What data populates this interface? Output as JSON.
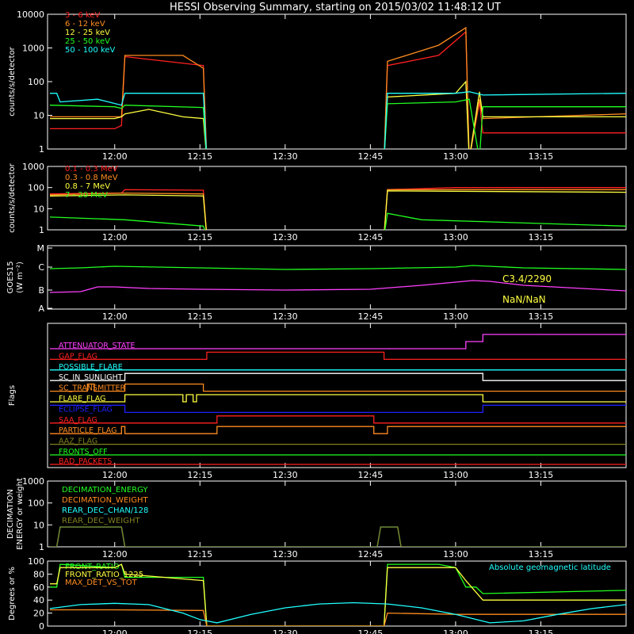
{
  "title": "HESSI Observing Summary, starting on 2015/03/02 11:48:12 UT",
  "time_ticks": [
    "12:00",
    "12:15",
    "12:30",
    "12:45",
    "13:00",
    "13:15"
  ],
  "chart_data": [
    {
      "id": "p1",
      "type": "line",
      "ylog": true,
      "ylim": [
        1,
        10000
      ],
      "ylabel": "counts/s/detector",
      "yticks": [
        "1",
        "10",
        "100",
        "1000",
        "10000"
      ],
      "series": [
        {
          "name": "3 - 6 keV",
          "color": "#ff2020",
          "x": [
            11.81,
            12.0,
            12.02,
            12.03,
            12.26,
            12.27,
            12.79,
            12.8,
            12.95,
            13.03,
            13.04,
            13.07,
            13.08,
            13.5
          ],
          "y": [
            4,
            4,
            5,
            550,
            300,
            0,
            0,
            300,
            600,
            3000,
            0,
            25,
            3,
            3
          ]
        },
        {
          "name": "6 - 12 keV",
          "color": "#ff8c20",
          "x": [
            11.81,
            12.0,
            12.02,
            12.03,
            12.2,
            12.26,
            12.27,
            12.79,
            12.8,
            12.95,
            13.03,
            13.04,
            13.07,
            13.08,
            13.5
          ],
          "y": [
            9,
            9,
            9,
            600,
            600,
            250,
            0,
            0,
            400,
            1200,
            4000,
            0,
            30,
            8,
            11
          ]
        },
        {
          "name": "12 - 25 keV",
          "color": "#ffff40",
          "x": [
            11.81,
            12.0,
            12.02,
            12.03,
            12.1,
            12.2,
            12.26,
            12.27,
            12.79,
            12.8,
            13.0,
            13.03,
            13.04,
            13.07,
            13.08,
            13.5
          ],
          "y": [
            8,
            8,
            9,
            11,
            15,
            9,
            8,
            0,
            0,
            35,
            45,
            100,
            0,
            50,
            9,
            9
          ]
        },
        {
          "name": "25 - 50 keV",
          "color": "#20ff20",
          "x": [
            11.81,
            12.0,
            12.02,
            12.03,
            12.26,
            12.27,
            12.79,
            12.8,
            13.0,
            13.04,
            13.07,
            13.08,
            13.5
          ],
          "y": [
            20,
            18,
            16,
            20,
            17,
            0,
            0,
            22,
            25,
            30,
            0,
            18,
            18
          ]
        },
        {
          "name": "50 - 100 keV",
          "color": "#20ffff",
          "x": [
            11.81,
            11.83,
            11.84,
            11.95,
            12.02,
            12.03,
            12.26,
            12.27,
            12.79,
            12.8,
            13.0,
            13.04,
            13.08,
            13.5
          ],
          "y": [
            45,
            45,
            25,
            30,
            20,
            45,
            45,
            0,
            0,
            45,
            45,
            50,
            40,
            45
          ]
        }
      ]
    },
    {
      "id": "p2",
      "type": "line",
      "ylog": true,
      "ylim": [
        1,
        1000
      ],
      "ylabel": "counts/s/detector",
      "yticks": [
        "1",
        "10",
        "100",
        "1000"
      ],
      "series": [
        {
          "name": "0.1 - 0.3 MeV",
          "color": "#ff2020",
          "x": [
            11.81,
            12.0,
            12.02,
            12.03,
            12.26,
            12.27,
            12.79,
            12.8,
            13.0,
            13.5
          ],
          "y": [
            50,
            55,
            55,
            80,
            75,
            0,
            0,
            80,
            100,
            100
          ]
        },
        {
          "name": "0.3 - 0.8 MeV",
          "color": "#ff8c20",
          "x": [
            11.81,
            12.03,
            12.26,
            12.27,
            12.79,
            12.8,
            13.5
          ],
          "y": [
            45,
            55,
            50,
            0,
            0,
            80,
            80
          ]
        },
        {
          "name": "0.8 - 7 MeV",
          "color": "#ffff40",
          "x": [
            11.81,
            12.03,
            12.26,
            12.27,
            12.79,
            12.8,
            13.5
          ],
          "y": [
            40,
            45,
            40,
            0,
            0,
            70,
            60
          ]
        },
        {
          "name": "7 - 20 MeV",
          "color": "#20ff20",
          "x": [
            11.81,
            12.03,
            12.26,
            12.27,
            12.79,
            12.8,
            12.9,
            13.5
          ],
          "y": [
            4,
            3,
            1.5,
            0,
            0,
            6,
            3,
            1.5
          ]
        }
      ]
    },
    {
      "id": "p3",
      "type": "line",
      "ylim": [
        0,
        4
      ],
      "ylabel": "GOES15",
      "ylabel2": "(W m⁻²)",
      "yticks": [
        "A",
        "B",
        "C",
        "M"
      ],
      "annotations": [
        {
          "text": "C3.4/2290",
          "color": "#ffff40"
        },
        {
          "text": "NaN/NaN",
          "color": "#ffff40"
        }
      ],
      "series": [
        {
          "name": "GOES long",
          "color": "#20ff20",
          "x": [
            11.81,
            11.9,
            12.0,
            12.25,
            12.5,
            12.75,
            13.0,
            13.05,
            13.2,
            13.5
          ],
          "y": [
            2.55,
            2.6,
            2.7,
            2.6,
            2.5,
            2.55,
            2.65,
            2.75,
            2.6,
            2.5
          ]
        },
        {
          "name": "GOES short",
          "color": "#ff40ff",
          "x": [
            11.81,
            11.9,
            11.95,
            12.0,
            12.1,
            12.25,
            12.5,
            12.75,
            12.9,
            13.0,
            13.05,
            13.1,
            13.2,
            13.5
          ],
          "y": [
            1.05,
            1.1,
            1.4,
            1.4,
            1.3,
            1.25,
            1.2,
            1.25,
            1.5,
            1.7,
            1.8,
            1.75,
            1.5,
            1.15
          ]
        }
      ]
    },
    {
      "id": "p4",
      "type": "flags",
      "ylabel": "Flags",
      "flags": [
        {
          "name": "ATTENUATOR_STATE",
          "color": "#ff40ff",
          "segments": [
            [
              11.81,
              13.03,
              0
            ],
            [
              13.03,
              13.08,
              1
            ],
            [
              13.08,
              13.5,
              2
            ]
          ]
        },
        {
          "name": "GAP_FLAG",
          "color": "#ff2020",
          "segments": [
            [
              11.81,
              12.27,
              0
            ],
            [
              12.27,
              12.79,
              1
            ],
            [
              12.79,
              13.5,
              0
            ]
          ]
        },
        {
          "name": "POSSIBLE_FLARE",
          "color": "#20ffff",
          "segments": [
            [
              11.81,
              13.5,
              0
            ]
          ]
        },
        {
          "name": "SC_IN_SUNLIGHT",
          "color": "#ffffff",
          "segments": [
            [
              11.81,
              12.03,
              0
            ],
            [
              12.03,
              13.08,
              1
            ],
            [
              13.08,
              13.5,
              0
            ]
          ]
        },
        {
          "name": "SC_TRANSMITTER",
          "color": "#ff8c20",
          "segments": [
            [
              11.81,
              11.92,
              0
            ],
            [
              11.92,
              11.94,
              1
            ],
            [
              11.94,
              12.03,
              0
            ],
            [
              12.03,
              12.26,
              1
            ],
            [
              12.26,
              13.5,
              0
            ]
          ]
        },
        {
          "name": "FLARE_FLAG",
          "color": "#ffff40",
          "segments": [
            [
              11.81,
              12.03,
              0
            ],
            [
              12.03,
              12.2,
              1
            ],
            [
              12.2,
              12.21,
              0
            ],
            [
              12.21,
              12.23,
              1
            ],
            [
              12.23,
              12.24,
              0
            ],
            [
              12.24,
              13.08,
              1
            ],
            [
              13.08,
              13.5,
              0
            ]
          ]
        },
        {
          "name": "ECLIPSE_FLAG",
          "color": "#2020ff",
          "segments": [
            [
              11.81,
              12.03,
              1
            ],
            [
              12.03,
              13.08,
              0
            ],
            [
              13.08,
              13.5,
              1
            ]
          ]
        },
        {
          "name": "SAA_FLAG",
          "color": "#ff2020",
          "segments": [
            [
              11.81,
              12.3,
              0
            ],
            [
              12.3,
              12.76,
              1
            ],
            [
              12.76,
              13.5,
              0
            ]
          ]
        },
        {
          "name": "PARTICLE_FLAG",
          "color": "#ff8c20",
          "segments": [
            [
              11.81,
              12.02,
              0
            ],
            [
              12.02,
              12.03,
              1
            ],
            [
              12.03,
              12.3,
              0
            ],
            [
              12.3,
              12.76,
              1
            ],
            [
              12.76,
              12.8,
              0
            ],
            [
              12.8,
              13.5,
              1
            ]
          ]
        },
        {
          "name": "AAZ_FLAG",
          "color": "#808020",
          "segments": [
            [
              11.81,
              13.5,
              0
            ]
          ]
        },
        {
          "name": "FRONTS_OFF",
          "color": "#20ff20",
          "segments": [
            [
              11.81,
              13.5,
              0
            ]
          ]
        },
        {
          "name": "BAD_PACKETS",
          "color": "#ff2020",
          "segments": [
            [
              11.81,
              13.5,
              0
            ]
          ]
        }
      ]
    },
    {
      "id": "p5",
      "type": "line",
      "ylog": true,
      "ylim": [
        1,
        1000
      ],
      "ylabel": "DECIMATION",
      "ylabel2": "ENERGY or weight",
      "yticks": [
        "1",
        "10",
        "100",
        "1000"
      ],
      "series": [
        {
          "name": "DECIMATION_ENERGY",
          "color": "#20ff20",
          "x": [],
          "y": []
        },
        {
          "name": "DECIMATION_WEIGHT",
          "color": "#ff8c20",
          "x": [],
          "y": []
        },
        {
          "name": "REAR_DEC_CHAN/128",
          "color": "#20ffff",
          "x": [
            11.81,
            11.83,
            11.84,
            12.02,
            12.03,
            12.77,
            12.78,
            12.83,
            12.84,
            13.5
          ],
          "y": [
            1,
            1,
            8,
            8,
            1,
            1,
            8,
            8,
            1,
            1
          ]
        },
        {
          "name": "REAR_DEC_WEIGHT",
          "color": "#808020",
          "x": [
            11.81,
            11.83,
            11.84,
            12.02,
            12.03,
            12.77,
            12.78,
            12.83,
            12.84,
            13.5
          ],
          "y": [
            1,
            1,
            8,
            8,
            1,
            1,
            8,
            8,
            1,
            1
          ]
        }
      ]
    },
    {
      "id": "p6",
      "type": "line",
      "ylim": [
        0,
        100
      ],
      "ylabel": "Degrees or %",
      "yticks": [
        "0",
        "20",
        "40",
        "60",
        "80",
        "100"
      ],
      "annotations": [
        {
          "text": "Absolute geomagnetic latitude",
          "color": "#20ffff"
        }
      ],
      "series": [
        {
          "name": "FRONT_RATIO",
          "color": "#20ff20",
          "x": [
            11.81,
            11.83,
            11.84,
            12.0,
            12.02,
            12.03,
            12.26,
            12.27,
            12.79,
            12.8,
            12.95,
            13.0,
            13.03,
            13.06,
            13.08,
            13.5
          ],
          "y": [
            60,
            60,
            95,
            90,
            95,
            75,
            75,
            0,
            0,
            95,
            95,
            90,
            60,
            60,
            50,
            55
          ]
        },
        {
          "name": "FRONT_RATIO_1225",
          "color": "#ffff40",
          "x": [
            11.81,
            11.83,
            11.84,
            12.0,
            12.02,
            12.03,
            12.26,
            12.27,
            12.79,
            12.8,
            13.0,
            13.03,
            13.08,
            13.5
          ],
          "y": [
            65,
            65,
            90,
            90,
            95,
            80,
            70,
            0,
            0,
            90,
            90,
            70,
            40,
            40
          ]
        },
        {
          "name": "MAX_DET_VS_TOT",
          "color": "#ff8c20",
          "x": [
            11.81,
            12.0,
            12.26,
            12.27,
            12.79,
            12.8,
            13.0,
            13.5
          ],
          "y": [
            25,
            25,
            24,
            0,
            0,
            20,
            18,
            18
          ]
        },
        {
          "name": "Absolute geomagnetic latitude",
          "color": "#20ffff",
          "x": [
            11.81,
            11.9,
            12.0,
            12.1,
            12.2,
            12.25,
            12.3,
            12.4,
            12.5,
            12.6,
            12.7,
            12.8,
            12.9,
            13.0,
            13.1,
            13.2,
            13.3,
            13.4,
            13.5
          ],
          "y": [
            27,
            33,
            35,
            33,
            20,
            10,
            5,
            18,
            28,
            34,
            36,
            34,
            28,
            18,
            5,
            8,
            18,
            27,
            33
          ]
        }
      ]
    }
  ]
}
